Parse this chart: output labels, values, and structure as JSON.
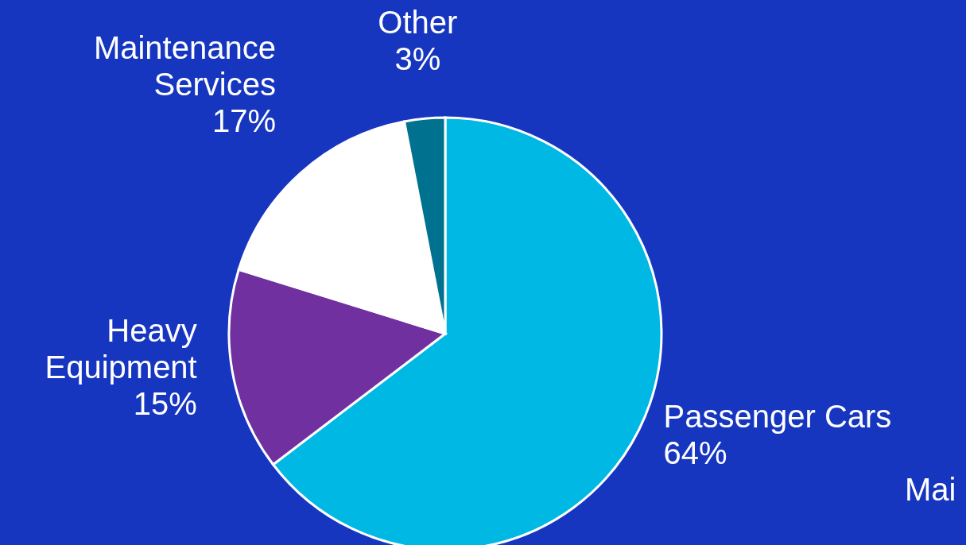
{
  "chart_data": {
    "type": "pie",
    "categories": [
      "Passenger Cars",
      "Heavy Equipment",
      "Maintenance Services",
      "Other"
    ],
    "values": [
      64,
      15,
      17,
      3
    ],
    "value_labels": [
      "64%",
      "15%",
      "17%",
      "3%"
    ],
    "colors": [
      "#00b8e4",
      "#7030a0",
      "#ffffff",
      "#00728f"
    ],
    "annotations": [
      "Mai"
    ],
    "legend": false
  }
}
